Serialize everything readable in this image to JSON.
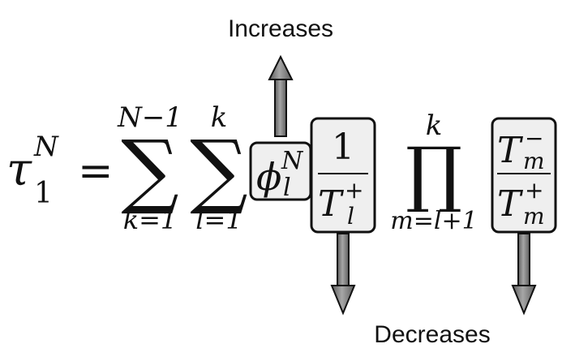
{
  "labels": {
    "increases": "Increases",
    "decreases": "Decreases"
  },
  "formula": {
    "lhs_symbol": "τ",
    "lhs_sub": "1",
    "lhs_sup": "N",
    "equals": "=",
    "sum1": {
      "symbol": "∑",
      "upper": "N−1",
      "lower": "k=1"
    },
    "sum2": {
      "symbol": "∑",
      "upper": "k",
      "lower": "l=1"
    },
    "phi": {
      "symbol": "ϕ",
      "sup": "N",
      "sub": "l"
    },
    "frac1": {
      "numerator": "1",
      "denominator": "T",
      "den_sup": "+",
      "den_sub": "l"
    },
    "prod": {
      "symbol": "∏",
      "upper": "k",
      "lower": "m=l+1"
    },
    "frac2": {
      "numerator": "T",
      "num_sup": "−",
      "num_sub": "m",
      "denominator": "T",
      "den_sup": "+",
      "den_sub": "m"
    }
  },
  "colors": {
    "arrow_light": "#a6a6a6",
    "arrow_dark": "#5c5c5c",
    "box_fill": "#efefef",
    "ink": "#111111"
  }
}
